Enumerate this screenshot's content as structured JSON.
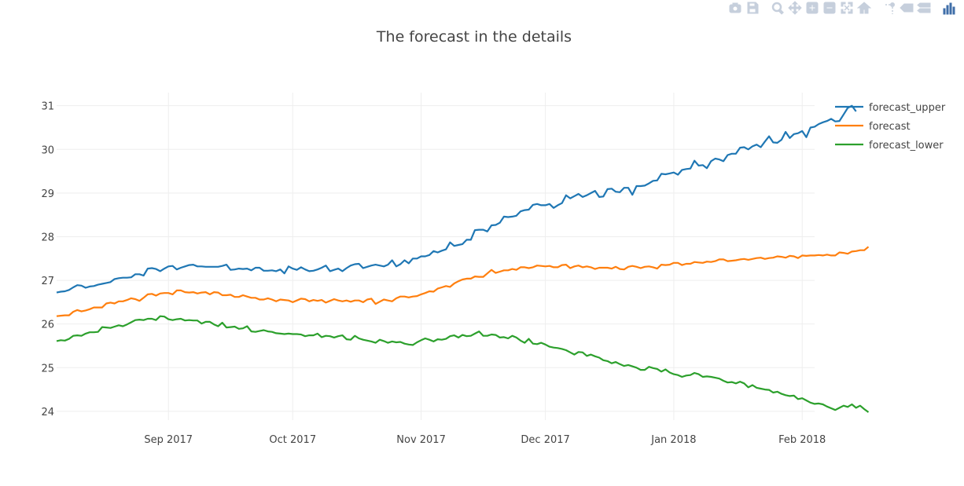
{
  "modebar": {
    "buttons": [
      {
        "name": "camera-icon"
      },
      {
        "name": "save-icon"
      },
      {
        "name": "zoom-icon"
      },
      {
        "name": "pan-icon"
      },
      {
        "name": "zoom-in-icon"
      },
      {
        "name": "zoom-out-icon"
      },
      {
        "name": "autoscale-icon"
      },
      {
        "name": "home-icon"
      },
      {
        "name": "spikelines-icon"
      },
      {
        "name": "hover-closest-icon"
      },
      {
        "name": "hover-compare-icon"
      },
      {
        "name": "plotly-logo-icon"
      }
    ],
    "icon_color": "#c6cfdc",
    "logo_color": "#3f6ea8"
  },
  "chart_data": {
    "type": "line",
    "title": "The forecast in the details",
    "x_start": "2017-08-05",
    "x_end": "2018-02-04",
    "xlim": [
      "2017-08-05",
      "2018-02-04"
    ],
    "ylim": [
      23.8,
      31.3
    ],
    "yticks": [
      24,
      25,
      26,
      27,
      28,
      29,
      30,
      31
    ],
    "xticks": [
      {
        "date": "2017-09-01",
        "label": "Sep 2017"
      },
      {
        "date": "2017-10-01",
        "label": "Oct 2017"
      },
      {
        "date": "2017-11-01",
        "label": "Nov 2017"
      },
      {
        "date": "2017-12-01",
        "label": "Dec 2017"
      },
      {
        "date": "2018-01-01",
        "label": "Jan 2018"
      },
      {
        "date": "2018-02-01",
        "label": "Feb 2018"
      }
    ],
    "grid": true,
    "legend_position": "top-right",
    "series": [
      {
        "name": "forecast_upper",
        "color": "#1f77b4",
        "values": [
          26.72,
          26.74,
          26.75,
          26.78,
          26.84,
          26.89,
          26.88,
          26.83,
          26.86,
          26.87,
          26.9,
          26.92,
          26.94,
          26.96,
          27.03,
          27.05,
          27.06,
          27.06,
          27.07,
          27.14,
          27.14,
          27.11,
          27.27,
          27.28,
          27.26,
          27.21,
          27.27,
          27.32,
          27.33,
          27.25,
          27.29,
          27.32,
          27.35,
          27.36,
          27.32,
          27.32,
          27.31,
          27.31,
          27.31,
          27.31,
          27.33,
          27.36,
          27.24,
          27.25,
          27.27,
          27.26,
          27.27,
          27.23,
          27.29,
          27.29,
          27.22,
          27.22,
          27.23,
          27.21,
          27.25,
          27.16,
          27.32,
          27.27,
          27.24,
          27.3,
          27.25,
          27.21,
          27.22,
          27.25,
          27.29,
          27.34,
          27.21,
          27.24,
          27.27,
          27.21,
          27.28,
          27.34,
          27.37,
          27.38,
          27.28,
          27.31,
          27.34,
          27.36,
          27.34,
          27.32,
          27.36,
          27.46,
          27.32,
          27.37,
          27.46,
          27.39,
          27.5,
          27.5,
          27.55,
          27.55,
          27.58,
          27.67,
          27.64,
          27.68,
          27.71,
          27.87,
          27.79,
          27.81,
          27.83,
          27.93,
          27.93,
          28.15,
          28.16,
          28.16,
          28.12,
          28.26,
          28.27,
          28.32,
          28.46,
          28.45,
          28.46,
          28.48,
          28.58,
          28.61,
          28.62,
          28.73,
          28.75,
          28.72,
          28.72,
          28.75,
          28.66,
          28.72,
          28.77,
          28.95,
          28.88,
          28.93,
          28.98,
          28.91,
          28.95,
          29.0,
          29.05,
          28.91,
          28.92,
          29.09,
          29.1,
          29.03,
          29.02,
          29.12,
          29.12,
          28.96,
          29.16,
          29.16,
          29.17,
          29.22,
          29.28,
          29.29,
          29.44,
          29.43,
          29.45,
          29.47,
          29.42,
          29.53,
          29.55,
          29.56,
          29.74,
          29.63,
          29.64,
          29.57,
          29.73,
          29.79,
          29.77,
          29.73,
          29.87,
          29.9,
          29.9,
          30.04,
          30.05,
          30.0,
          30.07,
          30.11,
          30.05,
          30.18,
          30.3,
          30.16,
          30.15,
          30.22,
          30.4,
          30.26,
          30.35,
          30.37,
          30.42,
          30.28,
          30.5,
          30.52,
          30.58,
          30.62,
          30.65,
          30.7,
          30.64,
          30.65,
          30.8,
          30.95,
          31.0,
          30.87
        ]
      },
      {
        "name": "forecast",
        "color": "#ff7f0e",
        "values": [
          26.18,
          26.19,
          26.2,
          26.2,
          26.28,
          26.32,
          26.29,
          26.31,
          26.34,
          26.38,
          26.38,
          26.38,
          26.47,
          26.49,
          26.47,
          26.52,
          26.52,
          26.55,
          26.59,
          26.57,
          26.53,
          26.6,
          26.68,
          26.69,
          26.65,
          26.7,
          26.71,
          26.71,
          26.68,
          26.77,
          26.77,
          26.73,
          26.72,
          26.73,
          26.7,
          26.72,
          26.73,
          26.68,
          26.73,
          26.72,
          26.66,
          26.66,
          26.67,
          26.62,
          26.62,
          26.66,
          26.63,
          26.6,
          26.6,
          26.56,
          26.56,
          26.59,
          26.56,
          26.52,
          26.56,
          26.55,
          26.54,
          26.5,
          26.54,
          26.58,
          26.57,
          26.52,
          26.55,
          26.53,
          26.55,
          26.49,
          26.53,
          26.57,
          26.54,
          26.52,
          26.54,
          26.51,
          26.54,
          26.54,
          26.5,
          26.56,
          26.58,
          26.46,
          26.51,
          26.56,
          26.54,
          26.52,
          26.59,
          26.63,
          26.63,
          26.61,
          26.63,
          26.64,
          26.68,
          26.71,
          26.75,
          26.74,
          26.81,
          26.84,
          26.87,
          26.85,
          26.93,
          26.98,
          27.02,
          27.04,
          27.04,
          27.09,
          27.08,
          27.08,
          27.16,
          27.24,
          27.17,
          27.2,
          27.23,
          27.23,
          27.26,
          27.24,
          27.3,
          27.3,
          27.28,
          27.3,
          27.34,
          27.33,
          27.32,
          27.33,
          27.3,
          27.3,
          27.35,
          27.36,
          27.28,
          27.32,
          27.34,
          27.3,
          27.32,
          27.3,
          27.26,
          27.29,
          27.29,
          27.29,
          27.27,
          27.31,
          27.26,
          27.25,
          27.31,
          27.33,
          27.31,
          27.28,
          27.31,
          27.32,
          27.3,
          27.27,
          27.36,
          27.35,
          27.36,
          27.4,
          27.4,
          27.35,
          27.38,
          27.38,
          27.42,
          27.41,
          27.4,
          27.43,
          27.42,
          27.44,
          27.48,
          27.48,
          27.44,
          27.45,
          27.46,
          27.48,
          27.49,
          27.47,
          27.49,
          27.51,
          27.52,
          27.49,
          27.51,
          27.52,
          27.55,
          27.54,
          27.52,
          27.56,
          27.55,
          27.51,
          27.57,
          27.56,
          27.57,
          27.57,
          27.58,
          27.57,
          27.59,
          27.57,
          27.57,
          27.64,
          27.63,
          27.61,
          27.66,
          27.67,
          27.69,
          27.69,
          27.77
        ]
      },
      {
        "name": "forecast_lower",
        "color": "#2ca02c",
        "values": [
          25.61,
          25.63,
          25.62,
          25.66,
          25.73,
          25.74,
          25.73,
          25.78,
          25.81,
          25.81,
          25.82,
          25.93,
          25.92,
          25.91,
          25.94,
          25.97,
          25.95,
          25.99,
          26.04,
          26.09,
          26.1,
          26.09,
          26.12,
          26.12,
          26.09,
          26.18,
          26.17,
          26.11,
          26.09,
          26.11,
          26.12,
          26.08,
          26.09,
          26.08,
          26.08,
          26.01,
          26.05,
          26.05,
          25.99,
          25.95,
          26.03,
          25.92,
          25.93,
          25.94,
          25.89,
          25.9,
          25.95,
          25.83,
          25.82,
          25.84,
          25.86,
          25.83,
          25.82,
          25.79,
          25.78,
          25.77,
          25.78,
          25.77,
          25.77,
          25.76,
          25.72,
          25.74,
          25.74,
          25.78,
          25.7,
          25.73,
          25.72,
          25.69,
          25.72,
          25.74,
          25.65,
          25.64,
          25.73,
          25.67,
          25.64,
          25.62,
          25.6,
          25.57,
          25.64,
          25.61,
          25.57,
          25.6,
          25.58,
          25.59,
          25.55,
          25.53,
          25.52,
          25.58,
          25.63,
          25.67,
          25.64,
          25.6,
          25.65,
          25.64,
          25.66,
          25.72,
          25.74,
          25.69,
          25.75,
          25.72,
          25.73,
          25.78,
          25.83,
          25.73,
          25.73,
          25.76,
          25.75,
          25.69,
          25.7,
          25.67,
          25.73,
          25.69,
          25.62,
          25.57,
          25.66,
          25.55,
          25.54,
          25.57,
          25.53,
          25.48,
          25.46,
          25.45,
          25.43,
          25.4,
          25.35,
          25.3,
          25.36,
          25.35,
          25.27,
          25.3,
          25.26,
          25.23,
          25.17,
          25.15,
          25.1,
          25.13,
          25.08,
          25.04,
          25.06,
          25.03,
          25.0,
          24.95,
          24.95,
          25.02,
          24.99,
          24.97,
          24.91,
          24.96,
          24.89,
          24.85,
          24.83,
          24.79,
          24.82,
          24.83,
          24.88,
          24.85,
          24.79,
          24.8,
          24.79,
          24.77,
          24.75,
          24.7,
          24.66,
          24.67,
          24.64,
          24.68,
          24.64,
          24.55,
          24.6,
          24.54,
          24.52,
          24.5,
          24.49,
          24.43,
          24.45,
          24.4,
          24.37,
          24.35,
          24.36,
          24.28,
          24.3,
          24.25,
          24.2,
          24.17,
          24.18,
          24.16,
          24.11,
          24.07,
          24.03,
          24.08,
          24.13,
          24.1,
          24.16,
          24.08,
          24.13,
          24.05,
          23.98
        ]
      }
    ]
  }
}
